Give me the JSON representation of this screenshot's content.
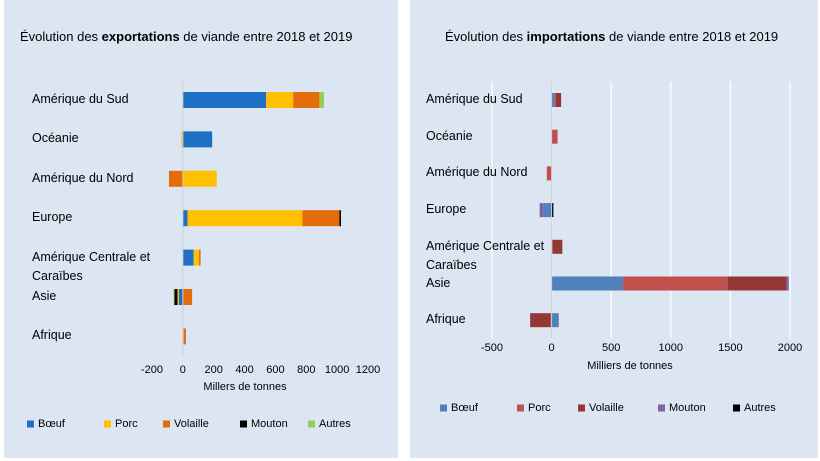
{
  "chart_data": [
    {
      "type": "stacked-barh",
      "title_parts": [
        "Évolution des ",
        "exportations",
        " de viande entre 2018 et 2019"
      ],
      "x_label": "Millers de tonnes",
      "categories": [
        "Amérique du Sud",
        "Océanie",
        "Amérique du Nord",
        "Europe",
        "Amérique Centrale et Caraïbes",
        "Asie",
        "Afrique"
      ],
      "series": [
        {
          "name": "Bœuf",
          "color": "#1f6fc5",
          "values": [
            540,
            190,
            0,
            30,
            70,
            -25,
            0
          ]
        },
        {
          "name": "Porc",
          "color": "#ffc000",
          "values": [
            175,
            -10,
            220,
            745,
            35,
            -10,
            5
          ]
        },
        {
          "name": "Volaille",
          "color": "#e46c0a",
          "values": [
            170,
            0,
            -90,
            240,
            10,
            60,
            15
          ]
        },
        {
          "name": "Mouton",
          "color": "#000000",
          "values": [
            0,
            0,
            0,
            10,
            0,
            -20,
            0
          ]
        },
        {
          "name": "Autres",
          "color": "#92d050",
          "values": [
            30,
            0,
            0,
            0,
            0,
            -5,
            0
          ]
        }
      ],
      "xlim": [
        -200,
        1200
      ],
      "xticks": [
        -200,
        0,
        200,
        400,
        600,
        800,
        1000,
        1200
      ],
      "grid": false
    },
    {
      "type": "stacked-barh",
      "title_parts": [
        "Évolution des ",
        "importations",
        " de viande entre 2018 et 2019"
      ],
      "x_label": "Milliers de tonnes",
      "categories": [
        "Amérique du Sud",
        "Océanie",
        "Amérique du Nord",
        "Europe",
        "Amérique Centrale et Caraïbes",
        "Asie",
        "Afrique"
      ],
      "series": [
        {
          "name": "Bœuf",
          "color": "#4f81bd",
          "values": [
            25,
            0,
            0,
            -70,
            0,
            600,
            60
          ]
        },
        {
          "name": "Porc",
          "color": "#c0504d",
          "values": [
            10,
            50,
            -40,
            0,
            10,
            880,
            -10
          ]
        },
        {
          "name": "Volaille",
          "color": "#953735",
          "values": [
            45,
            0,
            0,
            0,
            80,
            490,
            -170
          ]
        },
        {
          "name": "Mouton",
          "color": "#8064a2",
          "values": [
            0,
            0,
            0,
            -30,
            0,
            20,
            0
          ]
        },
        {
          "name": "Autres",
          "color": "#000000",
          "values": [
            0,
            0,
            0,
            15,
            0,
            0,
            0
          ]
        }
      ],
      "xlim": [
        -500,
        2000
      ],
      "xticks": [
        -500,
        0,
        500,
        1000,
        1500,
        2000
      ],
      "grid": true
    }
  ]
}
